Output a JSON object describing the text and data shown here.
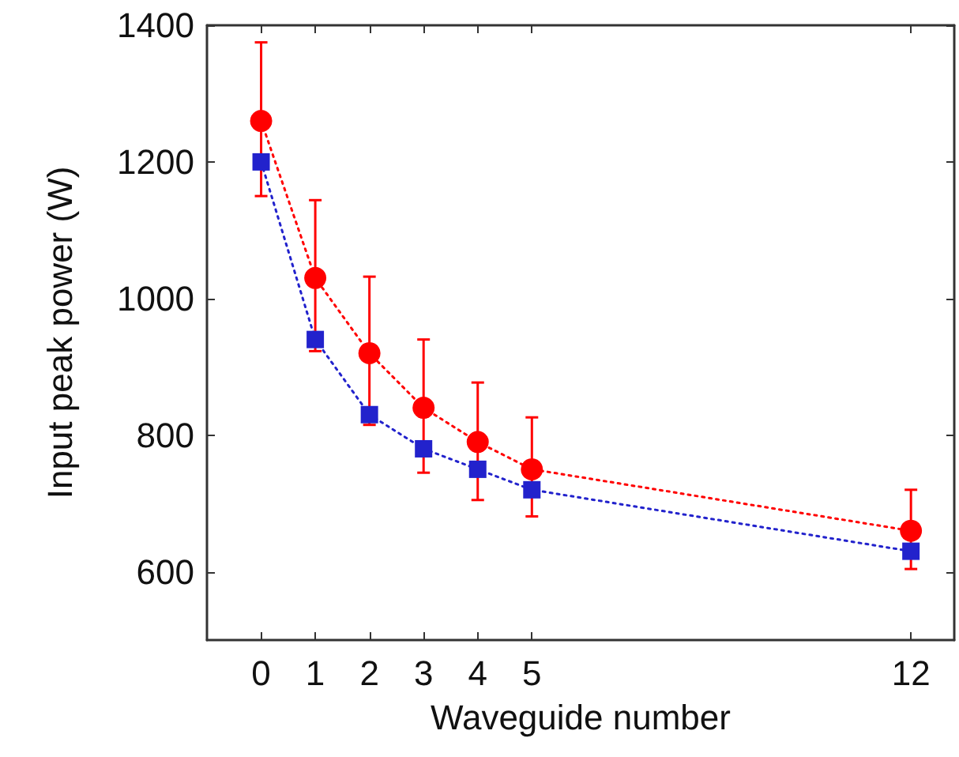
{
  "chart_data": {
    "type": "line",
    "xlabel": "Waveguide number",
    "ylabel": "Input peak power (W)",
    "x": [
      0,
      1,
      2,
      3,
      4,
      5,
      12
    ],
    "series": [
      {
        "color": "#ff0000",
        "marker": "circle",
        "values": [
          1260,
          1030,
          920,
          840,
          790,
          750,
          660
        ],
        "errors": [
          [
            1150,
            1375
          ],
          [
            923,
            1144
          ],
          [
            815,
            1032
          ],
          [
            745,
            940
          ],
          [
            705,
            877
          ],
          [
            681,
            826
          ],
          [
            604,
            720
          ]
        ]
      },
      {
        "color": "#2222cc",
        "marker": "square",
        "values": [
          1200,
          940,
          830,
          780,
          750,
          720,
          630
        ]
      }
    ],
    "xlim": [
      -1,
      12.8
    ],
    "xticks": [
      0,
      1,
      2,
      3,
      4,
      5,
      12
    ],
    "ylim": [
      500,
      1400
    ],
    "yticks": [
      600,
      800,
      1000,
      1200,
      1400
    ],
    "line_style": "dotted"
  }
}
